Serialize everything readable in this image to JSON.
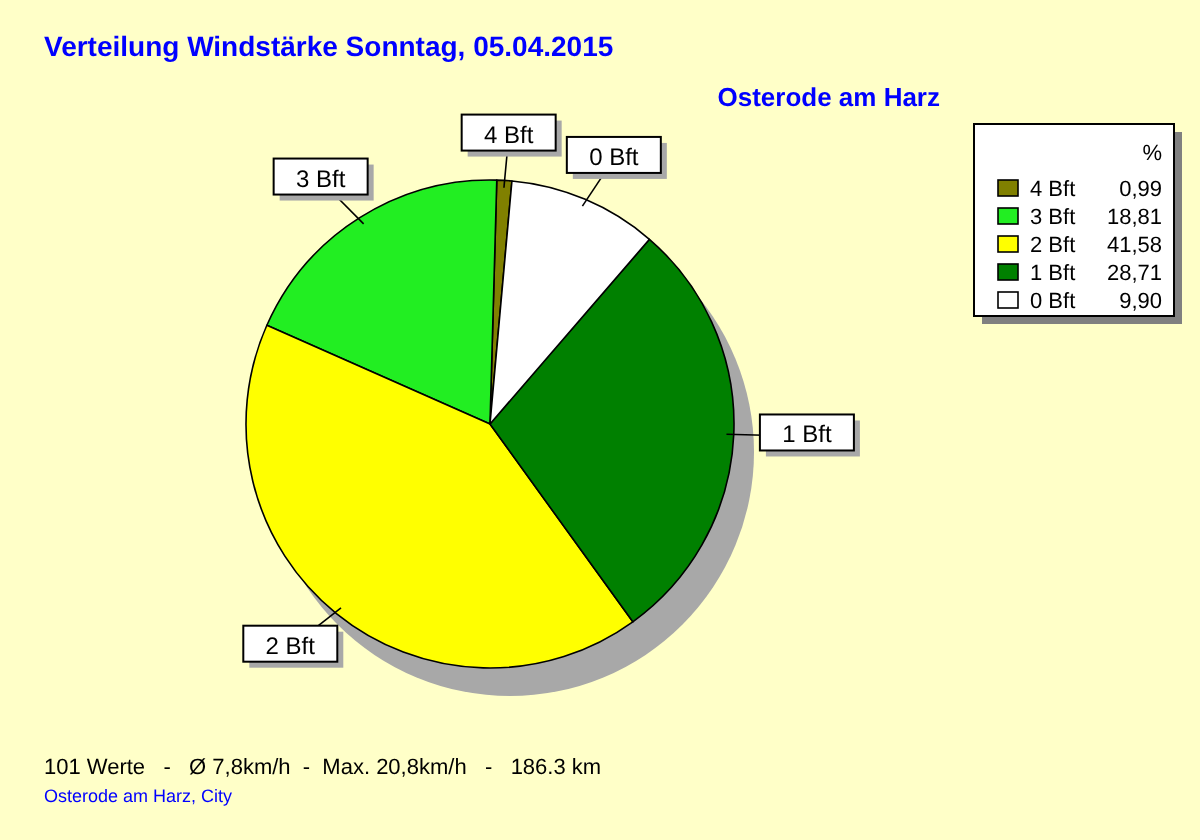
{
  "chart_data": {
    "type": "pie",
    "title": "Verteilung Windstärke  Sonntag, 05.04.2015",
    "subtitle": "Osterode am Harz",
    "legend_title": "%",
    "categories": [
      "4 Bft",
      "3 Bft",
      "2 Bft",
      "1 Bft",
      "0 Bft"
    ],
    "values": [
      0.99,
      18.81,
      41.58,
      28.71,
      9.9
    ],
    "value_labels": [
      "0,99",
      "18,81",
      "41,58",
      "28,71",
      "9,90"
    ],
    "colors": [
      "#808000",
      "#22ee22",
      "#ffff00",
      "#008000",
      "#ffffff"
    ],
    "legend": "top right",
    "annotations": [
      "101 Werte   -   Ø 7,8km/h  -  Max. 20,8km/h   -   186.3 km",
      "Osterode am Harz, City"
    ]
  }
}
